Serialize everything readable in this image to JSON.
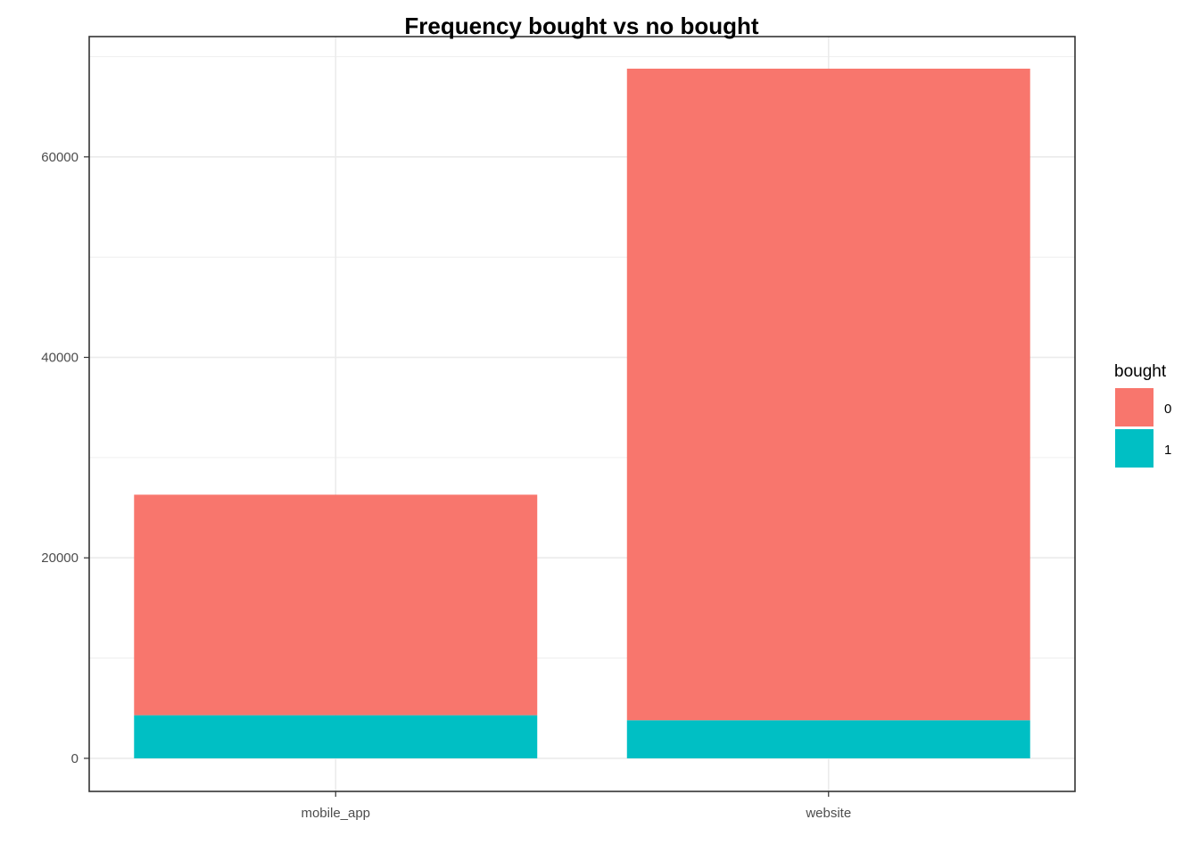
{
  "chart_data": {
    "type": "bar",
    "stacked": true,
    "title": "Frequency bought vs no bought",
    "xlabel": "",
    "ylabel": "",
    "categories": [
      "mobile_app",
      "website"
    ],
    "series": [
      {
        "name": "0",
        "values": [
          22000,
          65000
        ],
        "color": "#F8766D"
      },
      {
        "name": "1",
        "values": [
          4300,
          3800
        ],
        "color": "#00BFC4"
      }
    ],
    "ylim": [
      -3300,
      72000
    ],
    "y_ticks": [
      0,
      20000,
      40000,
      60000
    ],
    "y_tick_labels": [
      "0",
      "20000",
      "40000",
      "60000"
    ],
    "y_minor_ticks": [
      10000,
      30000,
      50000,
      70000
    ],
    "grid": true,
    "legend": {
      "title": "bought",
      "position": "right",
      "labels": [
        "0",
        "1"
      ]
    },
    "theme": {
      "panel_border": "#333333",
      "grid_color": "#ebebeb",
      "background": "#ffffff"
    }
  }
}
